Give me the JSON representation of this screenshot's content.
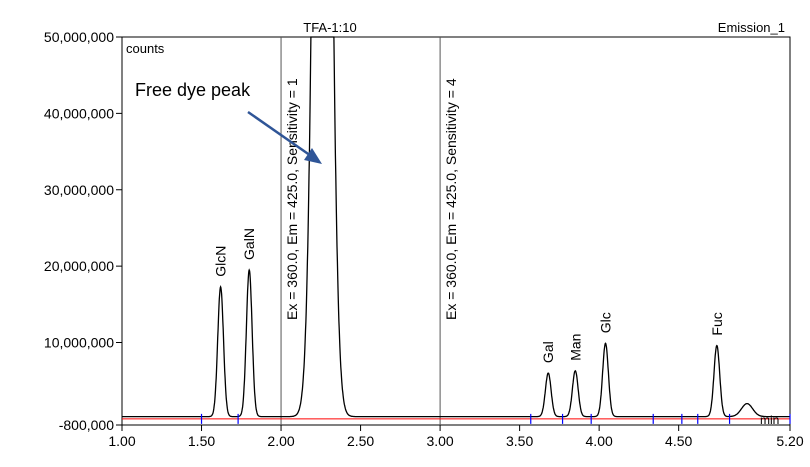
{
  "chart_data": {
    "type": "line",
    "title": "TFA-1:10",
    "subtitle": "Emission_1",
    "ylabel": "counts",
    "xlabel": "min",
    "xlim": [
      1.0,
      5.2
    ],
    "ylim": [
      -800000,
      50000000
    ],
    "x_ticks": [
      "1.00",
      "1.50",
      "2.00",
      "2.50",
      "3.00",
      "3.50",
      "4.00",
      "4.50",
      "5.20"
    ],
    "y_ticks": [
      "-800,000",
      "10,000,000",
      "20,000,000",
      "30,000,000",
      "40,000,000",
      "50,000,000"
    ],
    "series": [
      {
        "color": "#000000",
        "baseline": 300000,
        "peaks": [
          {
            "label": "GlcN",
            "x": 1.62,
            "y": 17300000
          },
          {
            "label": "GalN",
            "x": 1.8,
            "y": 19500000
          },
          {
            "label": "",
            "x": 2.26,
            "y": 50000000
          },
          {
            "label": "Gal",
            "x": 3.68,
            "y": 6000000
          },
          {
            "label": "Man",
            "x": 3.85,
            "y": 6300000
          },
          {
            "label": "Glc",
            "x": 4.04,
            "y": 9900000
          },
          {
            "label": "Fuc",
            "x": 4.74,
            "y": 9600000
          },
          {
            "label": "",
            "x": 4.93,
            "y": 2000000
          }
        ]
      },
      {
        "color": "#ff0000",
        "baseline": 0
      }
    ],
    "markers": [
      {
        "x": 2.0,
        "text": "Ex = 360.0, Em = 425.0, Sensitivity = 1"
      },
      {
        "x": 3.0,
        "text": "Ex = 360.0, Em = 425.0, Sensitivity = 4"
      }
    ],
    "integration_ticks": [
      1.5,
      1.73,
      3.57,
      3.77,
      3.95,
      4.34,
      4.52,
      4.62,
      4.82,
      5.2
    ],
    "annotation": {
      "text": "Free dye peak",
      "color": "#2f5597"
    },
    "grid": false
  }
}
